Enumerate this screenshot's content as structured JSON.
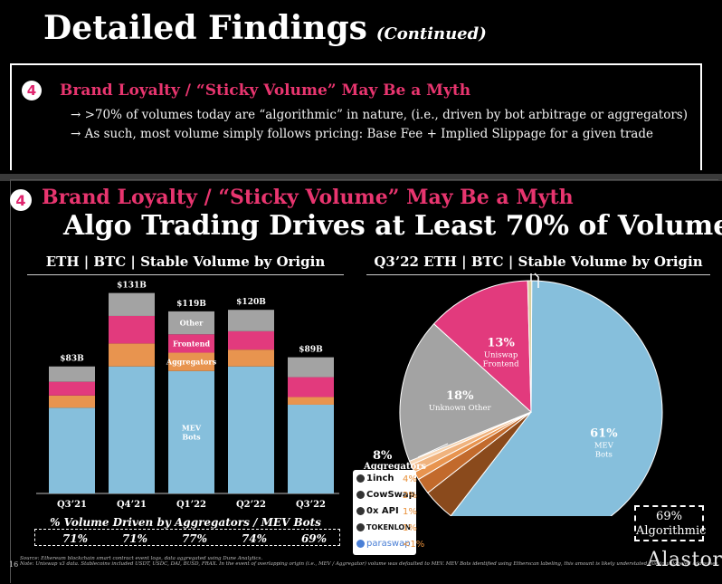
{
  "header": {
    "title": "Detailed Findings",
    "subtitle": "(Continued)"
  },
  "finding_box": {
    "number": "4",
    "heading": "Brand Loyalty / “Sticky Volume” May Be a Myth",
    "bullets": [
      "→  >70% of volumes today are “algorithmic” in nature, (i.e., driven by bot arbitrage or aggregators)",
      "→  As such, most volume simply follows pricing: Base Fee + Implied Slippage for a given trade"
    ]
  },
  "slide": {
    "number": "4",
    "heading": "Brand Loyalty / “Sticky Volume” May Be a Myth",
    "title": "Algo Trading Drives at Least 70% of Volume",
    "bar_subtitle": "ETH | BTC | Stable Volume by Origin",
    "pie_subtitle": "Q3’22 ETH | BTC | Stable Volume by Origin",
    "pct_title": "% Volume Driven by Aggregators / MEV Bots",
    "pct_values": [
      "71%",
      "71%",
      "77%",
      "74%",
      "69%"
    ],
    "algo_box": {
      "value": "69%",
      "label": "Algorithmic"
    },
    "aggregators_label": {
      "value": "8%",
      "label": "Aggregators"
    },
    "legend": [
      {
        "name": "1inch",
        "value": "4%",
        "icon": "1inch-icon"
      },
      {
        "name": "CowSwap",
        "value": "2%",
        "icon": "cowswap-icon"
      },
      {
        "name": "0x API",
        "value": "1%",
        "icon": "0x-icon"
      },
      {
        "name": "TOKENLON",
        "value": "1%",
        "icon": "tokenlon-icon"
      },
      {
        "name": "paraswap",
        "value": "<1%",
        "icon": "paraswap-icon"
      }
    ],
    "source": "Source: Ethereum blockchain smart contract event logs, data aggregated using Dune Analytics.",
    "note": "Note: Uniswap v3 data. Stablecoins included USDT, USDC, DAI, BUSD, FRAX. In the event of overlapping origin (i.e., MEV / Aggregator) volume was defaulted to MEV. MEV Bots identified using Etherscan labeling, this amount is likely understated due to unlabeled addresses.",
    "page_number": "16",
    "logo": "Alastor"
  },
  "colors": {
    "mev": "#86bfdc",
    "aggregators": "#e8944f",
    "frontend": "#e23a7d",
    "other": "#a3a3a3",
    "accent": "#e8356f"
  },
  "chart_data": [
    {
      "type": "bar",
      "title": "ETH | BTC | Stable Volume by Origin",
      "categories": [
        "Q3’21",
        "Q4’21",
        "Q1’22",
        "Q2’22",
        "Q3’22"
      ],
      "totals": [
        "$83B",
        "$131B",
        "$119B",
        "$120B",
        "$89B"
      ],
      "series": [
        {
          "name": "MEV Bots",
          "values": [
            56,
            83,
            80,
            83,
            58
          ]
        },
        {
          "name": "Aggregators",
          "values": [
            8,
            15,
            12,
            11,
            5
          ]
        },
        {
          "name": "Frontend",
          "values": [
            9,
            18,
            12,
            12,
            13
          ]
        },
        {
          "name": "Other",
          "values": [
            10,
            15,
            15,
            14,
            13
          ]
        }
      ],
      "segment_labels": {
        "Q1’22": [
          "MEV\nBots",
          "Aggregators",
          "Frontend",
          "Other"
        ]
      }
    },
    {
      "type": "pie",
      "title": "Q3’22 ETH | BTC | Stable Volume by Origin",
      "slices": [
        {
          "name": "MEV Bots",
          "value": 61,
          "label": "61%"
        },
        {
          "name": "1inch",
          "value": 4
        },
        {
          "name": "CowSwap",
          "value": 2
        },
        {
          "name": "0x API",
          "value": 1
        },
        {
          "name": "TOKENLON",
          "value": 1
        },
        {
          "name": "paraswap",
          "value": 0.5
        },
        {
          "name": "Unknown Other",
          "value": 18,
          "label": "18%"
        },
        {
          "name": "Uniswap Frontend",
          "value": 13,
          "label": "13%"
        },
        {
          "name": "",
          "value": 0.5
        }
      ]
    }
  ]
}
